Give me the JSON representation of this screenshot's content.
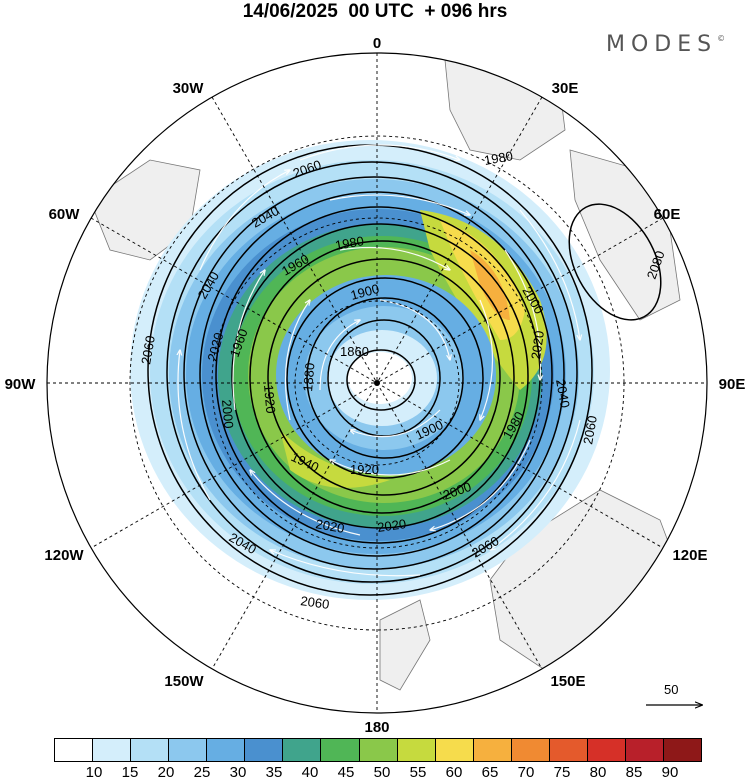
{
  "title": "14/06/2025  00 UTC  + 096 hrs",
  "brand": "MODES",
  "brand_mark": "©",
  "longitude_labels": [
    {
      "text": "0",
      "lon": 0
    },
    {
      "text": "30E",
      "lon": 30
    },
    {
      "text": "60E",
      "lon": 60
    },
    {
      "text": "90E",
      "lon": 90
    },
    {
      "text": "120E",
      "lon": 120
    },
    {
      "text": "150E",
      "lon": 150
    },
    {
      "text": "180",
      "lon": 180
    },
    {
      "text": "150W",
      "lon": -150
    },
    {
      "text": "120W",
      "lon": -120
    },
    {
      "text": "90W",
      "lon": -90
    },
    {
      "text": "60W",
      "lon": -60
    },
    {
      "text": "30W",
      "lon": -30
    }
  ],
  "contour_labels": [
    "2080",
    "2060",
    "2060",
    "2060",
    "2060",
    "2060",
    "2040",
    "2040",
    "2040",
    "2040",
    "2020",
    "2020",
    "2020",
    "2020",
    "2000",
    "2000",
    "2000",
    "1980",
    "1980",
    "1980",
    "1960",
    "1960",
    "1940",
    "1920",
    "1920",
    "1900",
    "1900",
    "1880",
    "1860"
  ],
  "wind_speed_scale": {
    "ticks": [
      "10",
      "15",
      "20",
      "25",
      "30",
      "35",
      "40",
      "45",
      "50",
      "55",
      "60",
      "65",
      "70",
      "75",
      "80",
      "85",
      "90"
    ],
    "colors": [
      "#ffffff",
      "#d4eefb",
      "#b4e0f6",
      "#8cc8ee",
      "#66aee3",
      "#4a90cf",
      "#40a48c",
      "#50b656",
      "#8ac84a",
      "#c6da3e",
      "#f6dc4c",
      "#f6b03e",
      "#f08a32",
      "#e45a2c",
      "#d63028",
      "#b8202a",
      "#8e1818"
    ]
  },
  "reference_vector": {
    "label": "50"
  },
  "icons": {
    "vector_arrow": "right-arrow-icon"
  }
}
